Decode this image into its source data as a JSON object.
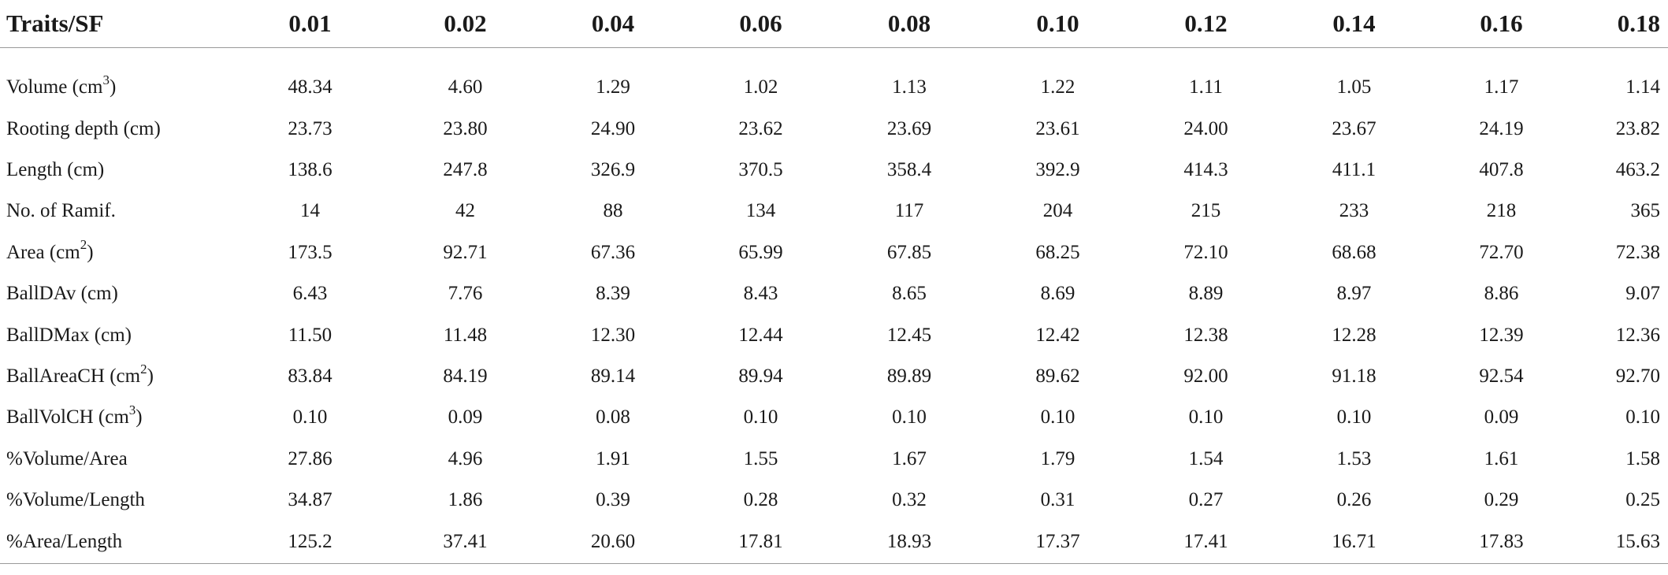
{
  "table": {
    "header": [
      "Traits/SF",
      "0.01",
      "0.02",
      "0.04",
      "0.06",
      "0.08",
      "0.10",
      "0.12",
      "0.14",
      "0.16",
      "0.18"
    ],
    "rows": [
      {
        "label": "Volume (cm",
        "sup": "3",
        "suffix": ")",
        "values": [
          "48.34",
          "4.60",
          "1.29",
          "1.02",
          "1.13",
          "1.22",
          "1.11",
          "1.05",
          "1.17",
          "1.14"
        ]
      },
      {
        "label": "Rooting depth (cm)",
        "sup": "",
        "suffix": "",
        "values": [
          "23.73",
          "23.80",
          "24.90",
          "23.62",
          "23.69",
          "23.61",
          "24.00",
          "23.67",
          "24.19",
          "23.82"
        ]
      },
      {
        "label": "Length (cm)",
        "sup": "",
        "suffix": "",
        "values": [
          "138.6",
          "247.8",
          "326.9",
          "370.5",
          "358.4",
          "392.9",
          "414.3",
          "411.1",
          "407.8",
          "463.2"
        ]
      },
      {
        "label": "No. of Ramif.",
        "sup": "",
        "suffix": "",
        "values": [
          "14",
          "42",
          "88",
          "134",
          "117",
          "204",
          "215",
          "233",
          "218",
          "365"
        ]
      },
      {
        "label": "Area (cm",
        "sup": "2",
        "suffix": ")",
        "values": [
          "173.5",
          "92.71",
          "67.36",
          "65.99",
          "67.85",
          "68.25",
          "72.10",
          "68.68",
          "72.70",
          "72.38"
        ]
      },
      {
        "label": "BallDAv (cm)",
        "sup": "",
        "suffix": "",
        "values": [
          "6.43",
          "7.76",
          "8.39",
          "8.43",
          "8.65",
          "8.69",
          "8.89",
          "8.97",
          "8.86",
          "9.07"
        ]
      },
      {
        "label": "BallDMax (cm)",
        "sup": "",
        "suffix": "",
        "values": [
          "11.50",
          "11.48",
          "12.30",
          "12.44",
          "12.45",
          "12.42",
          "12.38",
          "12.28",
          "12.39",
          "12.36"
        ]
      },
      {
        "label": "BallAreaCH (cm",
        "sup": "2",
        "suffix": ")",
        "values": [
          "83.84",
          "84.19",
          "89.14",
          "89.94",
          "89.89",
          "89.62",
          "92.00",
          "91.18",
          "92.54",
          "92.70"
        ]
      },
      {
        "label": "BallVolCH (cm",
        "sup": "3",
        "suffix": ")",
        "values": [
          "0.10",
          "0.09",
          "0.08",
          "0.10",
          "0.10",
          "0.10",
          "0.10",
          "0.10",
          "0.09",
          "0.10"
        ]
      },
      {
        "label": "%Volume/Area",
        "sup": "",
        "suffix": "",
        "values": [
          "27.86",
          "4.96",
          "1.91",
          "1.55",
          "1.67",
          "1.79",
          "1.54",
          "1.53",
          "1.61",
          "1.58"
        ]
      },
      {
        "label": "%Volume/Length",
        "sup": "",
        "suffix": "",
        "values": [
          "34.87",
          "1.86",
          "0.39",
          "0.28",
          "0.32",
          "0.31",
          "0.27",
          "0.26",
          "0.29",
          "0.25"
        ]
      },
      {
        "label": "%Area/Length",
        "sup": "",
        "suffix": "",
        "values": [
          "125.2",
          "37.41",
          "20.60",
          "17.81",
          "18.93",
          "17.37",
          "17.41",
          "16.71",
          "17.83",
          "15.63"
        ]
      }
    ]
  }
}
